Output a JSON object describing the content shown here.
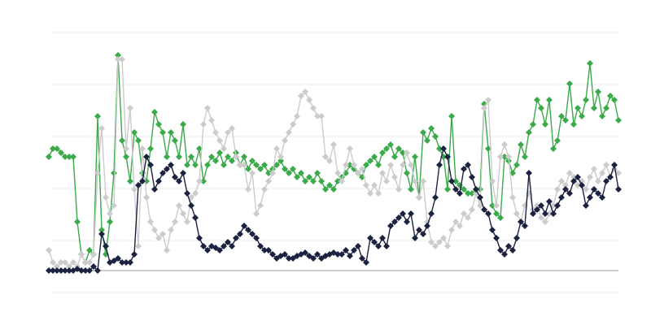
{
  "chart_data": {
    "type": "line",
    "grid": true,
    "ylim": [
      -27,
      293
    ],
    "series": [
      {
        "color": "#3aaa4a",
        "values": [
          140,
          150,
          150,
          145,
          140,
          140,
          140,
          60,
          20,
          10,
          25,
          20,
          190,
          50,
          20,
          60,
          120,
          265,
          160,
          140,
          110,
          170,
          160,
          120,
          110,
          150,
          195,
          180,
          170,
          140,
          170,
          160,
          140,
          180,
          130,
          140,
          130,
          150,
          110,
          130,
          140,
          135,
          145,
          130,
          140,
          135,
          145,
          130,
          140,
          125,
          135,
          130,
          125,
          130,
          120,
          125,
          130,
          135,
          125,
          120,
          125,
          115,
          120,
          110,
          115,
          110,
          120,
          110,
          100,
          105,
          100,
          110,
          115,
          120,
          130,
          125,
          120,
          115,
          130,
          135,
          140,
          130,
          145,
          150,
          155,
          140,
          150,
          145,
          120,
          100,
          140,
          90,
          170,
          160,
          175,
          165,
          150,
          140,
          100,
          190,
          110,
          105,
          100,
          95,
          95,
          100,
          100,
          205,
          150,
          80,
          70,
          65,
          140,
          135,
          120,
          130,
          155,
          140,
          170,
          180,
          210,
          200,
          180,
          210,
          150,
          160,
          190,
          185,
          230,
          180,
          200,
          190,
          210,
          255,
          200,
          220,
          190,
          200,
          215,
          210,
          185
        ]
      },
      {
        "color": "#cccccc",
        "values": [
          25,
          10,
          5,
          10,
          10,
          5,
          10,
          5,
          20,
          10,
          10,
          20,
          120,
          175,
          90,
          70,
          80,
          260,
          260,
          150,
          200,
          100,
          30,
          150,
          90,
          60,
          50,
          40,
          45,
          25,
          50,
          60,
          80,
          70,
          60,
          90,
          95,
          110,
          180,
          200,
          185,
          170,
          160,
          150,
          170,
          175,
          140,
          130,
          130,
          100,
          120,
          70,
          80,
          100,
          110,
          120,
          150,
          140,
          160,
          170,
          180,
          190,
          215,
          220,
          210,
          200,
          190,
          190,
          140,
          135,
          155,
          120,
          110,
          130,
          150,
          130,
          120,
          125,
          105,
          95,
          105,
          95,
          120,
          110,
          130,
          115,
          100,
          130,
          145,
          130,
          110,
          90,
          110,
          60,
          35,
          30,
          35,
          40,
          30,
          50,
          60,
          55,
          70,
          65,
          75,
          95,
          80,
          200,
          210,
          110,
          80,
          140,
          155,
          140,
          90,
          70,
          60,
          80,
          95,
          75,
          80,
          65,
          60,
          70,
          80,
          100,
          110,
          105,
          120,
          115,
          105,
          110,
          100,
          115,
          125,
          110,
          120,
          130,
          115,
          125,
          120
        ]
      },
      {
        "color": "#1b2340",
        "values": [
          0,
          0,
          0,
          0,
          0,
          0,
          0,
          2,
          0,
          0,
          0,
          5,
          0,
          45,
          30,
          10,
          12,
          15,
          10,
          10,
          10,
          20,
          105,
          110,
          140,
          130,
          100,
          110,
          120,
          125,
          130,
          115,
          110,
          120,
          95,
          80,
          65,
          40,
          30,
          25,
          30,
          28,
          25,
          30,
          35,
          30,
          40,
          45,
          55,
          50,
          45,
          40,
          30,
          25,
          25,
          20,
          15,
          18,
          20,
          15,
          15,
          18,
          20,
          22,
          18,
          15,
          20,
          15,
          18,
          20,
          22,
          20,
          20,
          25,
          18,
          25,
          30,
          15,
          10,
          40,
          35,
          30,
          40,
          30,
          55,
          60,
          65,
          70,
          60,
          70,
          40,
          50,
          45,
          55,
          70,
          90,
          130,
          150,
          140,
          110,
          100,
          95,
          125,
          130,
          115,
          100,
          90,
          75,
          70,
          50,
          40,
          25,
          20,
          30,
          25,
          40,
          60,
          55,
          120,
          70,
          75,
          80,
          70,
          85,
          70,
          80,
          90,
          100,
          95,
          110,
          115,
          105,
          80,
          90,
          100,
          95,
          90,
          110,
          115,
          130,
          100
        ]
      }
    ]
  }
}
